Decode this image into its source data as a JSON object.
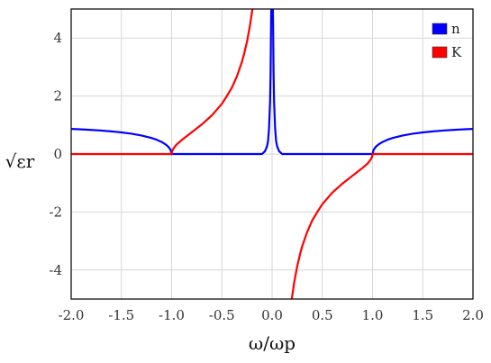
{
  "chart_data": {
    "type": "line",
    "title": "",
    "xlabel": "ω/ωp",
    "ylabel": "√εr",
    "xlim": [
      -2,
      2
    ],
    "ylim": [
      -5,
      5
    ],
    "x_ticks": [
      "-2.0",
      "-1.5",
      "-1.0",
      "-0.5",
      "0.0",
      "0.5",
      "1.0",
      "1.5",
      "2.0"
    ],
    "y_ticks": [
      "4",
      "2",
      "0",
      "-2",
      "-4"
    ],
    "grid": true,
    "legend": "top-right",
    "series": [
      {
        "name": "n",
        "color": "#0000ff",
        "segments": [
          [
            [
              -2.0,
              0.866
            ],
            [
              -1.9,
              0.85
            ],
            [
              -1.8,
              0.831
            ],
            [
              -1.7,
              0.809
            ],
            [
              -1.6,
              0.781
            ],
            [
              -1.5,
              0.745
            ],
            [
              -1.4,
              0.7
            ],
            [
              -1.3,
              0.639
            ],
            [
              -1.2,
              0.553
            ],
            [
              -1.15,
              0.494
            ],
            [
              -1.1,
              0.417
            ],
            [
              -1.06,
              0.331
            ],
            [
              -1.03,
              0.241
            ],
            [
              -1.01,
              0.14
            ],
            [
              -1.0,
              0.0
            ]
          ],
          [
            [
              -1.0,
              0.0
            ],
            [
              -0.5,
              0.0
            ],
            [
              -0.3,
              0.0
            ],
            [
              -0.2,
              0.0
            ],
            [
              -0.1,
              0.0
            ],
            [
              -0.07,
              0.1
            ],
            [
              -0.05,
              0.27
            ],
            [
              -0.04,
              0.45
            ],
            [
              -0.03,
              0.9
            ],
            [
              -0.02,
              1.8
            ],
            [
              -0.015,
              2.8
            ],
            [
              -0.01,
              4.5
            ],
            [
              -0.008,
              5.0
            ]
          ],
          [
            [
              0.008,
              5.0
            ],
            [
              0.01,
              4.5
            ],
            [
              0.015,
              2.8
            ],
            [
              0.02,
              1.8
            ],
            [
              0.03,
              0.9
            ],
            [
              0.04,
              0.45
            ],
            [
              0.05,
              0.27
            ],
            [
              0.07,
              0.1
            ],
            [
              0.1,
              0.0
            ],
            [
              0.2,
              0.0
            ],
            [
              0.3,
              0.0
            ],
            [
              0.5,
              0.0
            ],
            [
              1.0,
              0.0
            ]
          ],
          [
            [
              1.0,
              0.0
            ],
            [
              1.01,
              0.14
            ],
            [
              1.03,
              0.241
            ],
            [
              1.06,
              0.331
            ],
            [
              1.1,
              0.417
            ],
            [
              1.15,
              0.494
            ],
            [
              1.2,
              0.553
            ],
            [
              1.3,
              0.639
            ],
            [
              1.4,
              0.7
            ],
            [
              1.5,
              0.745
            ],
            [
              1.6,
              0.781
            ],
            [
              1.7,
              0.809
            ],
            [
              1.8,
              0.831
            ],
            [
              1.9,
              0.85
            ],
            [
              2.0,
              0.866
            ]
          ]
        ]
      },
      {
        "name": "K",
        "color": "#ff0000",
        "segments": [
          [
            [
              -2.0,
              0.0
            ],
            [
              -1.5,
              0.0
            ],
            [
              -1.2,
              0.0
            ],
            [
              -1.1,
              0.0
            ],
            [
              -1.03,
              0.0
            ],
            [
              -1.0,
              0.0
            ]
          ],
          [
            [
              -1.0,
              0.0
            ],
            [
              -0.995,
              0.1
            ],
            [
              -0.98,
              0.2
            ],
            [
              -0.95,
              0.33
            ],
            [
              -0.9,
              0.48
            ],
            [
              -0.8,
              0.75
            ],
            [
              -0.7,
              1.02
            ],
            [
              -0.6,
              1.33
            ],
            [
              -0.5,
              1.73
            ],
            [
              -0.45,
              2.0
            ],
            [
              -0.4,
              2.29
            ],
            [
              -0.35,
              2.68
            ],
            [
              -0.3,
              3.18
            ],
            [
              -0.28,
              3.43
            ],
            [
              -0.25,
              3.87
            ],
            [
              -0.22,
              4.43
            ],
            [
              -0.2,
              4.9
            ],
            [
              -0.195,
              5.0
            ]
          ],
          [
            [
              0.195,
              -5.0
            ],
            [
              0.2,
              -4.9
            ],
            [
              0.22,
              -4.43
            ],
            [
              0.25,
              -3.87
            ],
            [
              0.28,
              -3.43
            ],
            [
              0.3,
              -3.18
            ],
            [
              0.35,
              -2.68
            ],
            [
              0.4,
              -2.29
            ],
            [
              0.45,
              -2.0
            ],
            [
              0.5,
              -1.73
            ],
            [
              0.6,
              -1.33
            ],
            [
              0.7,
              -1.02
            ],
            [
              0.8,
              -0.75
            ],
            [
              0.9,
              -0.48
            ],
            [
              0.95,
              -0.33
            ],
            [
              0.98,
              -0.2
            ],
            [
              0.995,
              -0.1
            ],
            [
              1.0,
              0.0
            ]
          ],
          [
            [
              1.0,
              0.0
            ],
            [
              1.03,
              0.0
            ],
            [
              1.1,
              0.0
            ],
            [
              1.2,
              0.0
            ],
            [
              1.5,
              0.0
            ],
            [
              2.0,
              0.0
            ]
          ]
        ]
      }
    ]
  }
}
